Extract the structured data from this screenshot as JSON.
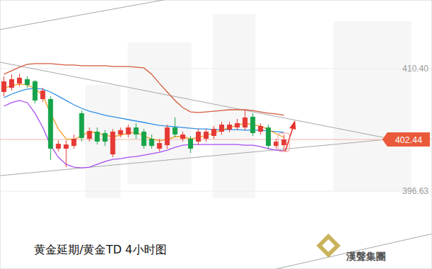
{
  "chart_data": {
    "type": "candlestick",
    "title": "黄金延期/黄金TD 4小时图",
    "logo_text": "漢聲集團",
    "categories": [
      null,
      null,
      null,
      null,
      null,
      null,
      null,
      null,
      null,
      null,
      null,
      null,
      null,
      null,
      null,
      null,
      null,
      null,
      null,
      null,
      null,
      null,
      null,
      null,
      null,
      null,
      null,
      null,
      null,
      null,
      null,
      null,
      null,
      null,
      null,
      null,
      null
    ],
    "open": [
      407.77,
      408.25,
      408.73,
      409.21,
      408.97,
      406.98,
      406.98,
      401.41,
      401.41,
      401.72,
      405.39,
      402.52,
      403.32,
      403.16,
      400.77,
      403.0,
      403.0,
      403.79,
      403.32,
      402.52,
      401.41,
      401.8,
      403.79,
      402.52,
      402.52,
      402.2,
      402.52,
      402.84,
      403.32,
      403.55,
      403.79,
      403.79,
      404.99,
      403.32,
      403.79,
      401.72,
      401.8
    ],
    "high": [
      409.52,
      409.76,
      409.84,
      409.52,
      409.13,
      408.25,
      407.3,
      402.36,
      402.36,
      403.0,
      405.7,
      403.79,
      403.79,
      403.48,
      403.63,
      403.79,
      404.11,
      404.27,
      403.63,
      403.0,
      402.52,
      404.11,
      404.91,
      403.32,
      402.84,
      403.63,
      403.63,
      403.95,
      404.43,
      404.43,
      404.75,
      405.78,
      405.39,
      404.27,
      404.11,
      402.52,
      403.0
    ],
    "low": [
      407.3,
      407.93,
      408.41,
      408.25,
      406.5,
      406.66,
      400.13,
      401.09,
      399.34,
      401.41,
      402.2,
      402.2,
      401.88,
      401.72,
      400.45,
      402.68,
      402.68,
      402.52,
      401.41,
      401.41,
      401.09,
      401.41,
      402.68,
      402.2,
      400.93,
      401.88,
      402.2,
      402.52,
      403.0,
      403.24,
      403.48,
      403.48,
      402.84,
      403.0,
      401.41,
      401.41,
      401.09
    ],
    "close": [
      408.97,
      409.21,
      409.37,
      408.57,
      406.82,
      407.93,
      401.41,
      401.96,
      401.88,
      402.52,
      402.6,
      403.4,
      402.2,
      402.2,
      403.32,
      403.48,
      403.79,
      403.0,
      401.72,
      401.72,
      402.04,
      403.79,
      403.0,
      403.0,
      401.41,
      403.32,
      403.32,
      403.63,
      404.11,
      404.11,
      404.27,
      404.91,
      403.16,
      403.95,
      401.72,
      402.2,
      402.44
    ],
    "lines": [
      {
        "color": "#d45a3c",
        "values": [
          409.76,
          410.16,
          410.56,
          410.88,
          410.96,
          410.96,
          410.96,
          410.88,
          410.8,
          410.8,
          410.72,
          410.72,
          410.72,
          410.72,
          410.64,
          410.64,
          410.64,
          410.56,
          410.48,
          409.76,
          408.73,
          407.77,
          406.82,
          406.02,
          405.54,
          405.47,
          405.54,
          405.62,
          405.7,
          405.78,
          405.78,
          405.78,
          405.7,
          405.54,
          405.39,
          405.31,
          405.15
        ]
      },
      {
        "color": "#a64df0",
        "values": [
          406.18,
          406.58,
          406.82,
          406.58,
          405.39,
          403.79,
          401.8,
          400.45,
          399.65,
          399.34,
          399.26,
          399.34,
          399.65,
          399.97,
          400.21,
          400.29,
          400.45,
          400.53,
          400.69,
          400.85,
          401.01,
          401.25,
          401.56,
          401.8,
          401.88,
          401.88,
          401.88,
          401.88,
          401.88,
          401.88,
          401.88,
          401.8,
          401.8,
          401.64,
          401.41,
          401.25,
          401.17
        ]
      },
      {
        "color": "#2e8fe6",
        "values": [
          407.14,
          407.53,
          407.85,
          408.09,
          408.17,
          408.09,
          407.77,
          407.3,
          406.82,
          406.34,
          405.94,
          405.62,
          405.39,
          405.15,
          404.99,
          404.83,
          404.67,
          404.51,
          404.35,
          404.19,
          404.03,
          403.95,
          403.87,
          403.79,
          403.71,
          403.63,
          403.63,
          403.55,
          403.55,
          403.55,
          403.55,
          403.48,
          403.48,
          403.48,
          403.4,
          403.32,
          403.24
        ]
      },
      {
        "color": "#f29a1e",
        "values": [
          408.17,
          408.49,
          408.65,
          408.57,
          408.17,
          407.38,
          405.39,
          403.63,
          402.52,
          402.44,
          402.84,
          403.32,
          403.16,
          402.92,
          402.76,
          402.92,
          403.16,
          403.24,
          402.84,
          402.52,
          402.28,
          402.44,
          402.76,
          402.76,
          402.52,
          402.68,
          402.92,
          403.16,
          403.48,
          403.79,
          404.03,
          404.27,
          404.11,
          403.95,
          403.55,
          403.08,
          402.68
        ]
      }
    ],
    "trend_lines": [
      {
        "x": [
          -0.5,
          49.2
        ],
        "values": [
          411.12,
          402.6
        ]
      },
      {
        "x": [
          -0.5,
          49.2
        ],
        "values": [
          398.38,
          402.44
        ]
      },
      {
        "x": [
          -0.5,
          22
        ],
        "values": [
          414.78,
          418.34
        ]
      },
      {
        "x": [
          35,
          55.04
        ],
        "values": [
          387.9,
          391.85
        ]
      }
    ],
    "last_price": {
      "value": 402.44,
      "label": "402.44"
    },
    "xlim": [
      -0.5,
      55.04
    ],
    "ylim": [
      387.9,
      418.1
    ],
    "yticks": [
      {
        "value": 410.4,
        "label": "410.40"
      },
      {
        "value": 396.63,
        "label": "396.63"
      }
    ],
    "grid": true,
    "tick_labels": "y"
  }
}
